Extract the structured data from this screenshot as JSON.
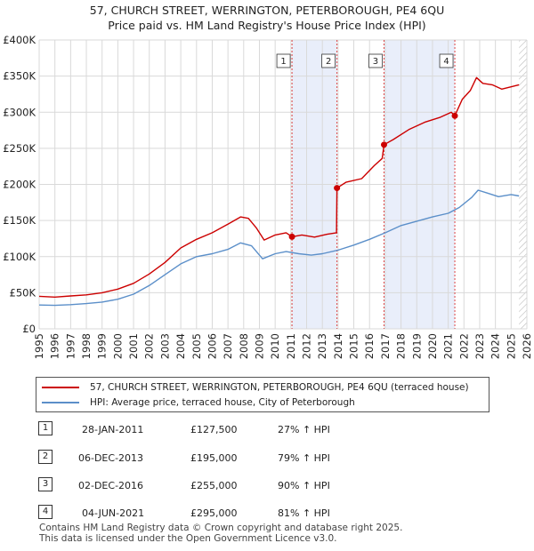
{
  "header": {
    "title": "57, CHURCH STREET, WERRINGTON, PETERBOROUGH, PE4 6QU",
    "subtitle": "Price paid vs. HM Land Registry's House Price Index (HPI)"
  },
  "chart_data": {
    "type": "line",
    "title": "57, CHURCH STREET, WERRINGTON, PETERBOROUGH, PE4 6QU",
    "subtitle": "Price paid vs. HM Land Registry's House Price Index (HPI)",
    "xlabel": "",
    "ylabel": "",
    "xlim": [
      1995,
      2026
    ],
    "ylim": [
      0,
      400000
    ],
    "y_ticks": [
      0,
      50000,
      100000,
      150000,
      200000,
      250000,
      300000,
      350000,
      400000
    ],
    "y_tick_labels": [
      "£0",
      "£50K",
      "£100K",
      "£150K",
      "£200K",
      "£250K",
      "£300K",
      "£350K",
      "£400K"
    ],
    "x_ticks": [
      "1995",
      "1996",
      "1997",
      "1998",
      "1999",
      "2000",
      "2001",
      "2002",
      "2003",
      "2004",
      "2005",
      "2006",
      "2007",
      "2008",
      "2009",
      "2010",
      "2011",
      "2012",
      "2013",
      "2014",
      "2015",
      "2016",
      "2017",
      "2018",
      "2019",
      "2020",
      "2021",
      "2022",
      "2023",
      "2024",
      "2025",
      "2026"
    ],
    "grid": true,
    "shaded_periods": [
      [
        2011.07,
        2013.93
      ],
      [
        2016.92,
        2021.42
      ]
    ],
    "data_end_year": 2025.5,
    "series": [
      {
        "name": "57, CHURCH STREET, WERRINGTON, PETERBOROUGH, PE4 6QU (terraced house)",
        "color": "#cc0000",
        "points": [
          [
            1995.0,
            45000
          ],
          [
            1996.0,
            44000
          ],
          [
            1997.0,
            45500
          ],
          [
            1998.0,
            47000
          ],
          [
            1999.0,
            50000
          ],
          [
            2000.0,
            55000
          ],
          [
            2001.0,
            63000
          ],
          [
            2002.0,
            76000
          ],
          [
            2003.0,
            92000
          ],
          [
            2004.0,
            112000
          ],
          [
            2005.0,
            124000
          ],
          [
            2006.0,
            133000
          ],
          [
            2007.0,
            145000
          ],
          [
            2007.8,
            155000
          ],
          [
            2008.3,
            153000
          ],
          [
            2008.8,
            140000
          ],
          [
            2009.3,
            123000
          ],
          [
            2010.0,
            130000
          ],
          [
            2010.7,
            133000
          ],
          [
            2011.07,
            127500
          ],
          [
            2011.7,
            130000
          ],
          [
            2012.5,
            127000
          ],
          [
            2013.3,
            131000
          ],
          [
            2013.9,
            133000
          ],
          [
            2013.93,
            195000
          ],
          [
            2014.5,
            203000
          ],
          [
            2015.5,
            208000
          ],
          [
            2016.3,
            226000
          ],
          [
            2016.8,
            236000
          ],
          [
            2016.92,
            255000
          ],
          [
            2017.5,
            262000
          ],
          [
            2018.5,
            276000
          ],
          [
            2019.5,
            286000
          ],
          [
            2020.5,
            293000
          ],
          [
            2021.2,
            300000
          ],
          [
            2021.42,
            295000
          ],
          [
            2021.9,
            318000
          ],
          [
            2022.4,
            330000
          ],
          [
            2022.8,
            348000
          ],
          [
            2023.2,
            340000
          ],
          [
            2023.8,
            338000
          ],
          [
            2024.4,
            332000
          ],
          [
            2025.5,
            338000
          ]
        ]
      },
      {
        "name": "HPI: Average price, terraced house, City of Peterborough",
        "color": "#5b8fc9",
        "points": [
          [
            1995.0,
            33000
          ],
          [
            1996.0,
            32500
          ],
          [
            1997.0,
            33500
          ],
          [
            1998.0,
            35000
          ],
          [
            1999.0,
            37000
          ],
          [
            2000.0,
            41000
          ],
          [
            2001.0,
            48000
          ],
          [
            2002.0,
            60000
          ],
          [
            2003.0,
            75000
          ],
          [
            2004.0,
            90000
          ],
          [
            2005.0,
            100000
          ],
          [
            2006.0,
            104000
          ],
          [
            2007.0,
            110000
          ],
          [
            2007.8,
            119000
          ],
          [
            2008.5,
            115000
          ],
          [
            2009.2,
            97000
          ],
          [
            2010.0,
            104000
          ],
          [
            2010.7,
            107000
          ],
          [
            2011.5,
            104000
          ],
          [
            2012.3,
            102000
          ],
          [
            2013.0,
            104000
          ],
          [
            2014.0,
            109000
          ],
          [
            2015.0,
            116000
          ],
          [
            2016.0,
            124000
          ],
          [
            2017.0,
            133000
          ],
          [
            2018.0,
            143000
          ],
          [
            2019.0,
            149000
          ],
          [
            2020.0,
            155000
          ],
          [
            2021.0,
            160000
          ],
          [
            2021.7,
            168000
          ],
          [
            2022.5,
            182000
          ],
          [
            2022.9,
            192000
          ],
          [
            2023.5,
            188000
          ],
          [
            2024.2,
            183000
          ],
          [
            2025.0,
            186000
          ],
          [
            2025.5,
            184000
          ]
        ]
      }
    ],
    "sales": [
      {
        "num": "1",
        "date": "28-JAN-2011",
        "x": 2011.07,
        "price": 127500,
        "price_label": "£127,500",
        "hpi_label": "27% ↑ HPI"
      },
      {
        "num": "2",
        "date": "06-DEC-2013",
        "x": 2013.93,
        "price": 195000,
        "price_label": "£195,000",
        "hpi_label": "79% ↑ HPI"
      },
      {
        "num": "3",
        "date": "02-DEC-2016",
        "x": 2016.92,
        "price": 255000,
        "price_label": "£255,000",
        "hpi_label": "90% ↑ HPI"
      },
      {
        "num": "4",
        "date": "04-JUN-2021",
        "x": 2021.42,
        "price": 295000,
        "price_label": "£295,000",
        "hpi_label": "81% ↑ HPI"
      }
    ]
  },
  "legend": {
    "items": [
      {
        "label": "57, CHURCH STREET, WERRINGTON, PETERBOROUGH, PE4 6QU (terraced house)",
        "color": "#cc0000"
      },
      {
        "label": "HPI: Average price, terraced house, City of Peterborough",
        "color": "#5b8fc9"
      }
    ]
  },
  "footer": {
    "line1": "Contains HM Land Registry data © Crown copyright and database right 2025.",
    "line2": "This data is licensed under the Open Government Licence v3.0."
  }
}
